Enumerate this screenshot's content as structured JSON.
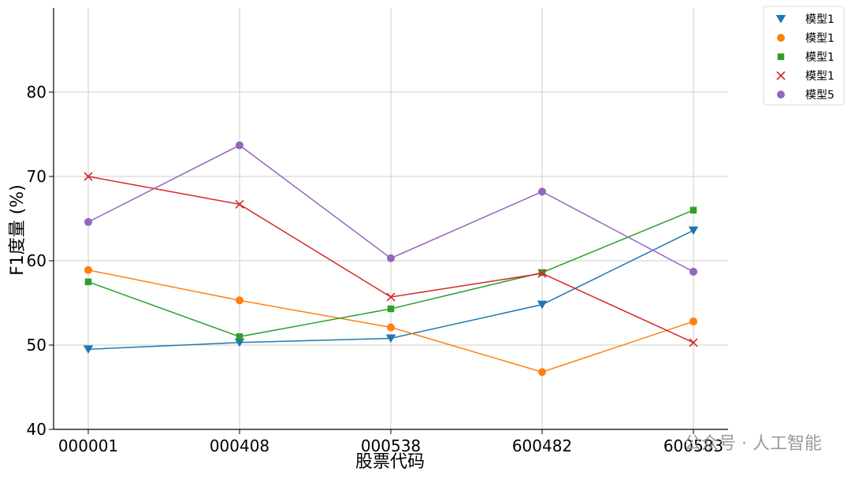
{
  "chart_data": {
    "type": "line",
    "title": "",
    "xlabel": "股票代码",
    "ylabel": "F1度量 (%)",
    "categories": [
      "000001",
      "000408",
      "000538",
      "600482",
      "600583"
    ],
    "ylim": [
      40,
      90
    ],
    "yticks": [
      40,
      50,
      60,
      70,
      80
    ],
    "grid": true,
    "legend_position": "top-right outside",
    "series": [
      {
        "name": "模型1",
        "marker": "triangle-down",
        "color": "#1f77b4",
        "values": [
          49.5,
          50.3,
          50.8,
          54.8,
          63.6
        ]
      },
      {
        "name": "模型1",
        "marker": "circle",
        "color": "#ff7f0e",
        "values": [
          58.9,
          55.3,
          52.1,
          46.8,
          52.8
        ]
      },
      {
        "name": "模型1",
        "marker": "square",
        "color": "#2ca02c",
        "values": [
          57.5,
          51.0,
          54.3,
          58.6,
          66.0
        ]
      },
      {
        "name": "模型1",
        "marker": "x",
        "color": "#d62728",
        "values": [
          70.0,
          66.7,
          55.7,
          58.5,
          50.3
        ]
      },
      {
        "name": "模型5",
        "marker": "circle",
        "color": "#9467bd",
        "values": [
          64.6,
          73.7,
          60.3,
          68.2,
          58.7
        ]
      }
    ]
  },
  "watermark": "公众号 · 人工智能"
}
